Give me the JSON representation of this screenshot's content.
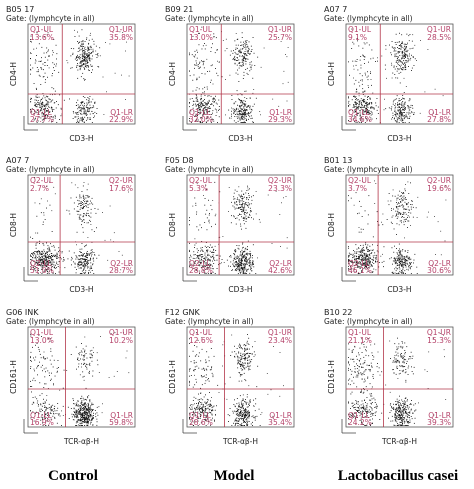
{
  "figure": {
    "column_labels": [
      "Control",
      "Model",
      "Lactobacillus casei"
    ]
  },
  "chart_data": [
    {
      "type": "scatter",
      "title": "B05 17",
      "subtitle": "Gate: (lymphcyte in all)",
      "xlabel": "CD3-H",
      "ylabel": "CD4-H",
      "quadrants": {
        "ul": {
          "name": "Q1-UL",
          "pct": "13.6%"
        },
        "ur": {
          "name": "Q1-UR",
          "pct": "35.8%"
        },
        "ll": {
          "name": "Q1-LL",
          "pct": "27.7%"
        },
        "lr": {
          "name": "Q1-LR",
          "pct": "22.9%"
        }
      },
      "gate": {
        "x": 0.32,
        "y": 0.3
      }
    },
    {
      "type": "scatter",
      "title": "B09 21",
      "subtitle": "Gate: (lymphcyte in all)",
      "xlabel": "CD3-H",
      "ylabel": "CD4-H",
      "quadrants": {
        "ul": {
          "name": "Q1-UL",
          "pct": "13.0%"
        },
        "ur": {
          "name": "Q1-UR",
          "pct": "25.7%"
        },
        "ll": {
          "name": "Q1-LL",
          "pct": "32.0%"
        },
        "lr": {
          "name": "Q1-LR",
          "pct": "29.3%"
        }
      },
      "gate": {
        "x": 0.32,
        "y": 0.3
      }
    },
    {
      "type": "scatter",
      "title": "A07 7",
      "subtitle": "Gate: (lymphcyte in all)",
      "xlabel": "CD3-H",
      "ylabel": "CD4-H",
      "quadrants": {
        "ul": {
          "name": "Q1-UL",
          "pct": "9.1%"
        },
        "ur": {
          "name": "Q1-UR",
          "pct": "28.5%"
        },
        "ll": {
          "name": "Q1-LL",
          "pct": "34.6%"
        },
        "lr": {
          "name": "Q1-LR",
          "pct": "27.8%"
        }
      },
      "gate": {
        "x": 0.32,
        "y": 0.3
      }
    },
    {
      "type": "scatter",
      "title": "A07 7",
      "subtitle": "Gate: (lymphcyte in all)",
      "xlabel": "CD3-H",
      "ylabel": "CD8-H",
      "quadrants": {
        "ul": {
          "name": "Q2-UL",
          "pct": "2.7%"
        },
        "ur": {
          "name": "Q2-UR",
          "pct": "17.6%"
        },
        "ll": {
          "name": "Q2-LL",
          "pct": "51.0%"
        },
        "lr": {
          "name": "Q2-LR",
          "pct": "28.7%"
        }
      },
      "gate": {
        "x": 0.3,
        "y": 0.33
      }
    },
    {
      "type": "scatter",
      "title": "F05 D8",
      "subtitle": "Gate: (lymphcyte in all)",
      "xlabel": "CD3-H",
      "ylabel": "CD8-H",
      "quadrants": {
        "ul": {
          "name": "Q2-UL",
          "pct": "5.3%"
        },
        "ur": {
          "name": "Q2-UR",
          "pct": "23.3%"
        },
        "ll": {
          "name": "Q2-LL",
          "pct": "28.8%"
        },
        "lr": {
          "name": "Q2-LR",
          "pct": "42.6%"
        }
      },
      "gate": {
        "x": 0.3,
        "y": 0.33
      }
    },
    {
      "type": "scatter",
      "title": "B01 13",
      "subtitle": "Gate: (lymphcyte in all)",
      "xlabel": "CD3-H",
      "ylabel": "CD8-H",
      "quadrants": {
        "ul": {
          "name": "Q2-UL",
          "pct": "3.7%"
        },
        "ur": {
          "name": "Q2-UR",
          "pct": "19.6%"
        },
        "ll": {
          "name": "Q2-LL",
          "pct": "46.1%"
        },
        "lr": {
          "name": "Q2-LR",
          "pct": "30.6%"
        }
      },
      "gate": {
        "x": 0.3,
        "y": 0.33
      }
    },
    {
      "type": "scatter",
      "title": "G06 INK",
      "subtitle": "Gate: (lymphcyte in all)",
      "xlabel": "TCR-αβ-H",
      "ylabel": "CD161-H",
      "quadrants": {
        "ul": {
          "name": "Q1-UL",
          "pct": "13.0%"
        },
        "ur": {
          "name": "Q1-UR",
          "pct": "10.2%"
        },
        "ll": {
          "name": "Q1-LL",
          "pct": "16.9%"
        },
        "lr": {
          "name": "Q1-LR",
          "pct": "59.8%"
        }
      },
      "gate": {
        "x": 0.35,
        "y": 0.38
      }
    },
    {
      "type": "scatter",
      "title": "F12 GNK",
      "subtitle": "Gate: (lymphcyte in all)",
      "xlabel": "TCR-αβ-H",
      "ylabel": "CD161-H",
      "quadrants": {
        "ul": {
          "name": "Q1-UL",
          "pct": "12.6%"
        },
        "ur": {
          "name": "Q1-UR",
          "pct": "23.4%"
        },
        "ll": {
          "name": "Q1-LL",
          "pct": "28.6%"
        },
        "lr": {
          "name": "Q1-LR",
          "pct": "35.4%"
        }
      },
      "gate": {
        "x": 0.35,
        "y": 0.38
      }
    },
    {
      "type": "scatter",
      "title": "B10 22",
      "subtitle": "Gate: (lymphcyte in all)",
      "xlabel": "TCR-αβ-H",
      "ylabel": "CD161-H",
      "quadrants": {
        "ul": {
          "name": "Q1-UL",
          "pct": "21.1%"
        },
        "ur": {
          "name": "Q1-UR",
          "pct": "15.3%"
        },
        "ll": {
          "name": "Q1-LL",
          "pct": "24.2%"
        },
        "lr": {
          "name": "Q1-LR",
          "pct": "39.3%"
        }
      },
      "gate": {
        "x": 0.35,
        "y": 0.38
      }
    }
  ]
}
